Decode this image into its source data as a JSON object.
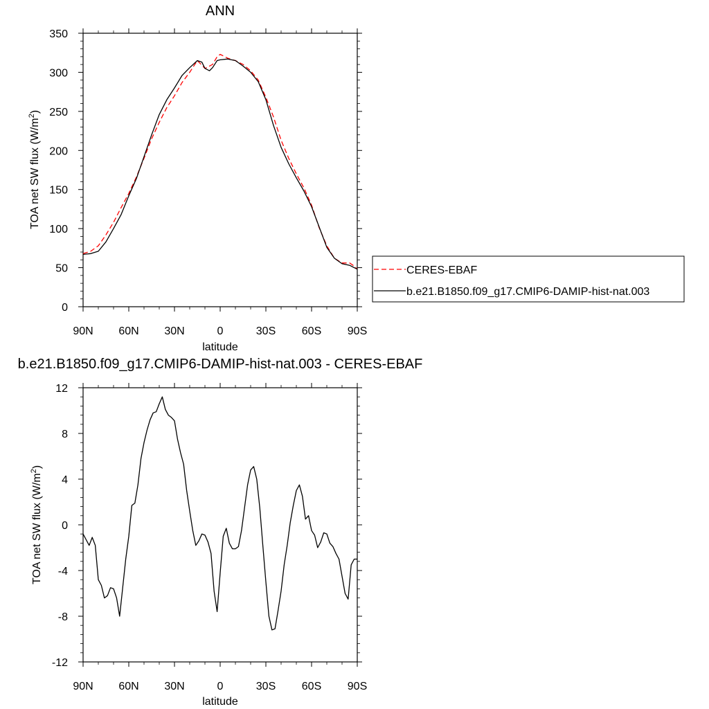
{
  "chart_data": [
    {
      "type": "line",
      "title": "ANN",
      "xlabel": "latitude",
      "ylabel_main": "TOA net SW flux (W/m",
      "ylabel_sup": "2",
      "ylabel_tail": ")",
      "xlim": [
        90,
        -90
      ],
      "ylim": [
        0,
        350
      ],
      "yticks": [
        0,
        50,
        100,
        150,
        200,
        250,
        300,
        350
      ],
      "xticks": [
        {
          "value": 90,
          "label": "90N"
        },
        {
          "value": 60,
          "label": "60N"
        },
        {
          "value": 30,
          "label": "30N"
        },
        {
          "value": 0,
          "label": "0"
        },
        {
          "value": -30,
          "label": "30S"
        },
        {
          "value": -60,
          "label": "60S"
        },
        {
          "value": -90,
          "label": "90S"
        }
      ],
      "legend_position": "right",
      "series": [
        {
          "name": "CERES-EBAF",
          "color": "#ff0000",
          "dash": "dashed",
          "x": [
            90,
            85,
            80,
            75,
            70,
            65,
            60,
            55,
            50,
            45,
            40,
            35,
            30,
            25,
            20,
            15,
            10,
            5,
            2,
            0,
            -5,
            -10,
            -15,
            -20,
            -25,
            -30,
            -35,
            -40,
            -45,
            -50,
            -55,
            -60,
            -65,
            -70,
            -75,
            -80,
            -85,
            -88,
            -90
          ],
          "values": [
            68,
            71,
            78,
            92,
            108,
            127,
            145,
            166,
            190,
            215,
            236,
            255,
            270,
            287,
            300,
            315,
            305,
            310,
            320,
            323,
            318,
            315,
            310,
            302,
            290,
            268,
            243,
            213,
            190,
            170,
            152,
            130,
            101,
            78,
            62,
            56,
            56,
            52,
            48
          ]
        },
        {
          "name": "b.e21.B1850.f09_g17.CMIP6-DAMIP-hist-nat.003",
          "color": "#000000",
          "dash": "solid",
          "x": [
            90,
            85,
            80,
            75,
            70,
            65,
            60,
            55,
            50,
            45,
            40,
            35,
            30,
            25,
            20,
            15,
            12,
            10,
            7,
            5,
            2,
            0,
            -5,
            -10,
            -15,
            -20,
            -25,
            -30,
            -35,
            -40,
            -45,
            -50,
            -55,
            -60,
            -65,
            -70,
            -75,
            -80,
            -85,
            -90
          ],
          "values": [
            67,
            68,
            71,
            83,
            100,
            118,
            142,
            164,
            192,
            220,
            246,
            265,
            280,
            296,
            306,
            315,
            313,
            305,
            302,
            306,
            315,
            316,
            317,
            315,
            308,
            300,
            288,
            265,
            232,
            204,
            183,
            165,
            148,
            128,
            102,
            76,
            62,
            55,
            53,
            48
          ]
        }
      ]
    },
    {
      "type": "line",
      "title": "b.e21.B1850.f09_g17.CMIP6-DAMIP-hist-nat.003 - CERES-EBAF",
      "xlabel": "latitude",
      "ylabel_main": "TOA net SW flux (W/m",
      "ylabel_sup": "2",
      "ylabel_tail": ")",
      "xlim": [
        90,
        -90
      ],
      "ylim": [
        -12,
        12
      ],
      "yticks": [
        -12,
        -8,
        -4,
        0,
        4,
        8,
        12
      ],
      "xticks": [
        {
          "value": 90,
          "label": "90N"
        },
        {
          "value": 60,
          "label": "60N"
        },
        {
          "value": 30,
          "label": "30N"
        },
        {
          "value": 0,
          "label": "0"
        },
        {
          "value": -30,
          "label": "30S"
        },
        {
          "value": -60,
          "label": "60S"
        },
        {
          "value": -90,
          "label": "90S"
        }
      ],
      "series": [
        {
          "color": "#000000",
          "dash": "solid",
          "x": [
            90,
            88,
            86,
            84,
            82,
            80,
            78,
            76,
            74,
            72,
            70,
            68,
            66,
            64,
            62,
            60,
            58,
            56,
            54,
            52,
            50,
            48,
            46,
            44,
            42,
            40,
            38,
            36,
            34,
            32,
            30,
            28,
            26,
            24,
            22,
            20,
            18,
            16,
            14,
            12,
            10,
            8,
            6,
            4,
            2,
            0,
            -2,
            -4,
            -6,
            -8,
            -10,
            -12,
            -14,
            -16,
            -18,
            -20,
            -22,
            -24,
            -26,
            -28,
            -30,
            -32,
            -34,
            -36,
            -38,
            -40,
            -42,
            -44,
            -46,
            -48,
            -50,
            -52,
            -54,
            -56,
            -58,
            -60,
            -62,
            -64,
            -66,
            -68,
            -70,
            -72,
            -74,
            -76,
            -78,
            -80,
            -82,
            -84,
            -86,
            -88,
            -90
          ],
          "values": [
            -0.8,
            -1.3,
            -1.8,
            -1.1,
            -1.8,
            -4.8,
            -5.3,
            -6.4,
            -6.2,
            -5.5,
            -5.6,
            -6.4,
            -8.0,
            -5.5,
            -3.0,
            -1.0,
            1.7,
            1.9,
            3.5,
            5.8,
            7.2,
            8.3,
            9.2,
            9.8,
            9.9,
            10.6,
            11.2,
            10.1,
            9.6,
            9.4,
            9.1,
            7.5,
            6.3,
            5.3,
            3.0,
            1.2,
            -0.5,
            -1.8,
            -1.4,
            -0.8,
            -0.9,
            -1.5,
            -2.5,
            -5.8,
            -7.6,
            -4.2,
            -1.0,
            -0.3,
            -1.6,
            -2.1,
            -2.1,
            -1.9,
            -0.5,
            1.5,
            3.5,
            4.8,
            5.1,
            4.0,
            1.5,
            -1.8,
            -5.0,
            -8.0,
            -9.2,
            -9.1,
            -7.5,
            -5.8,
            -3.5,
            -1.8,
            0.2,
            1.7,
            3.0,
            3.5,
            2.5,
            0.5,
            0.8,
            -0.5,
            -0.9,
            -2.0,
            -1.5,
            -0.7,
            -0.8,
            -1.6,
            -1.9,
            -2.5,
            -3.0,
            -4.5,
            -6.0,
            -6.5,
            -3.5,
            -3.0,
            -3.0
          ]
        }
      ]
    }
  ]
}
